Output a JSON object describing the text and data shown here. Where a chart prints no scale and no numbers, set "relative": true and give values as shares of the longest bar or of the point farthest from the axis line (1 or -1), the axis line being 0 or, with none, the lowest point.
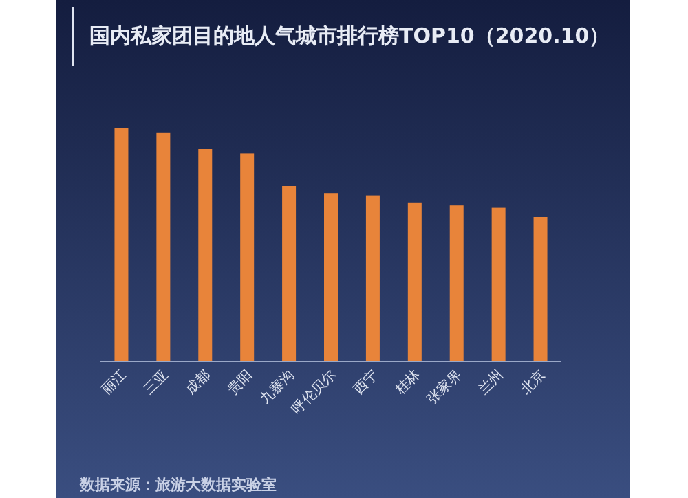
{
  "chart_data": {
    "type": "bar",
    "relative": true,
    "title": "国内私家团目的地人气城市排行榜TOP10（2020.10）",
    "categories": [
      "丽江",
      "三亚",
      "成都",
      "贵阳",
      "九寨沟",
      "呼伦贝尔",
      "西宁",
      "桂林",
      "张家界",
      "兰州",
      "北京"
    ],
    "values": [
      1,
      0.98,
      0.91,
      0.89,
      0.75,
      0.72,
      0.71,
      0.68,
      0.67,
      0.66,
      0.62
    ],
    "color": "#e8843a",
    "annotations": [
      "数据来源：旅游大数据实验室"
    ]
  }
}
